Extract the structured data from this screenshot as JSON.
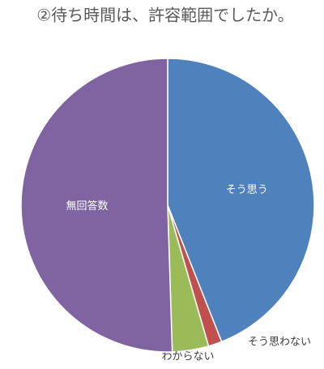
{
  "chart_data": {
    "type": "pie",
    "title": "②待ち時間は、許容範囲でしたか。",
    "categories": [
      "そう思う",
      "そう思わない",
      "わからない",
      "無回答数"
    ],
    "values": [
      44,
      1.5,
      4,
      50.5
    ],
    "colors": [
      "#4f81bd",
      "#c0504d",
      "#9bbb59",
      "#8064a2"
    ]
  }
}
